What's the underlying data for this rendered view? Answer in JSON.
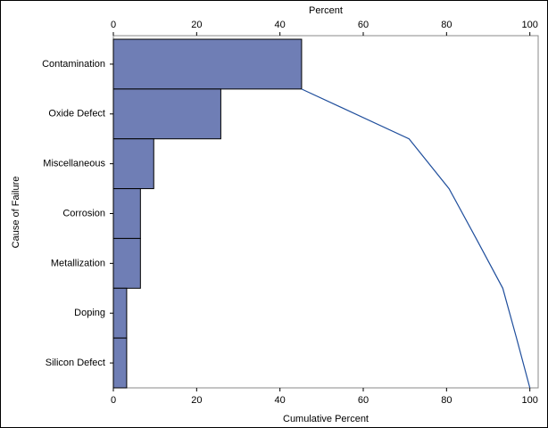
{
  "chart_data": {
    "type": "pareto",
    "categories": [
      "Contamination",
      "Oxide Defect",
      "Miscellaneous",
      "Corrosion",
      "Metallization",
      "Doping",
      "Silicon Defect"
    ],
    "values": [
      45.2,
      25.8,
      9.7,
      6.5,
      6.5,
      3.2,
      3.2
    ],
    "cumulative_values": [
      45.2,
      71.0,
      80.6,
      87.1,
      93.5,
      96.8,
      100
    ],
    "color": "#6f7eb5",
    "line_color": "#1f4e9c",
    "ylabel": "Cause of Failure",
    "x2label": "Percent",
    "x2lim": [
      0,
      102
    ],
    "x2ticks": [
      0,
      20,
      40,
      60,
      80,
      100
    ],
    "xlabel": "Cumulative Percent",
    "xlim": [
      0,
      102
    ],
    "xticks": [
      0,
      20,
      40,
      60,
      80,
      100
    ]
  }
}
